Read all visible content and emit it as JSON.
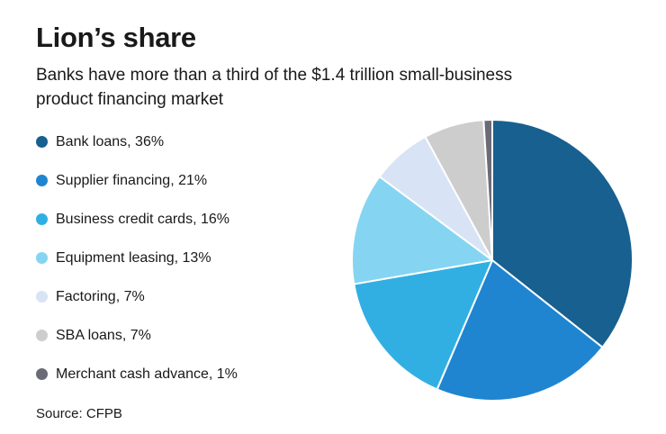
{
  "chart_data": {
    "type": "pie",
    "title": "Lion’s share",
    "subtitle": "Banks have more than a third of the $1.4 trillion small-business product financing market",
    "source": "Source: CFPB",
    "legend_position": "left",
    "start_angle": "12-oclock",
    "direction": "clockwise",
    "slices": [
      {
        "label": "Bank loans",
        "value": 36,
        "color": "#17608f"
      },
      {
        "label": "Supplier financing",
        "value": 21,
        "color": "#1f85d1"
      },
      {
        "label": "Business credit cards",
        "value": 16,
        "color": "#31afe3"
      },
      {
        "label": "Equipment leasing",
        "value": 13,
        "color": "#85d5f2"
      },
      {
        "label": "Factoring",
        "value": 7,
        "color": "#d8e4f5"
      },
      {
        "label": "SBA loans",
        "value": 7,
        "color": "#cdcdcd"
      },
      {
        "label": "Merchant cash advance",
        "value": 1,
        "color": "#6b6b78"
      }
    ]
  }
}
